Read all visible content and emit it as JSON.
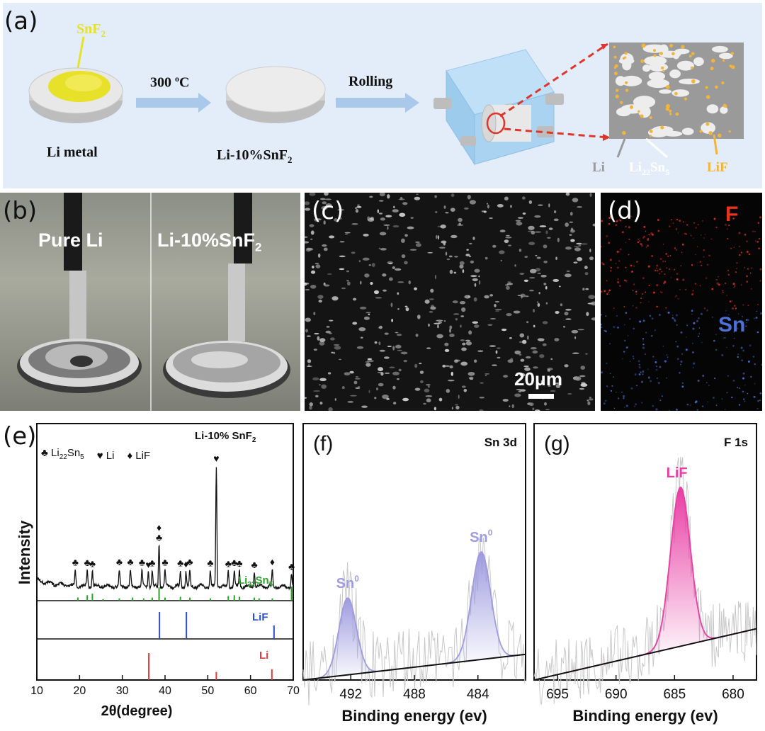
{
  "panel_a": {
    "letter": "(a)",
    "snf2_label": "SnF",
    "snf2_sub": "2",
    "step1_label": "300",
    "step1_sup": "o",
    "step1_unit": "C",
    "step2_label": "Rolling",
    "disc1_caption": "Li metal",
    "disc2_caption": "Li-10%SnF",
    "disc2_sub": "2",
    "legend_li": "Li",
    "legend_li22": "Li",
    "legend_li22_sub": "22",
    "legend_li22_rest": "Sn",
    "legend_li22_sub2": "5",
    "legend_lif": "LiF",
    "colors": {
      "background": "#e3edf9",
      "snf2": "#e8e12a",
      "arrow": "#aac8ea",
      "dashed": "#e0352b",
      "matrix": "#9a9a9a",
      "lif": "#f2b53a"
    }
  },
  "panel_b": {
    "letter": "(b)",
    "label_left": "Pure Li",
    "label_right": "Li-10%SnF",
    "label_right_sub": "2"
  },
  "panel_c": {
    "letter": "(c)",
    "scale_bar": "20μm"
  },
  "panel_d": {
    "letter": "(d)",
    "label_f": "F",
    "label_sn": "Sn",
    "colors": {
      "f": "#e8331e",
      "sn": "#4a72d8"
    }
  },
  "chart_data": [
    {
      "panel": "(e)",
      "type": "line",
      "title": "Li-10% SnF",
      "title_sub": "2",
      "xlabel": "2θ(degree)",
      "ylabel": "Intensity",
      "xlim": [
        10,
        70
      ],
      "xticks": [
        10,
        20,
        30,
        40,
        50,
        60,
        70
      ],
      "legend": [
        {
          "symbol": "♣",
          "name": "Li",
          "sub": "22",
          "rest": "Sn",
          "sub2": "5"
        },
        {
          "symbol": "♥",
          "name": "Li"
        },
        {
          "symbol": "♦",
          "name": "LiF"
        }
      ],
      "peaks_marked": [
        {
          "x": 19.0,
          "label": "♣"
        },
        {
          "x": 21.8,
          "label": "♣"
        },
        {
          "x": 23.0,
          "label": "♣"
        },
        {
          "x": 29.3,
          "label": "♣"
        },
        {
          "x": 31.9,
          "label": "♣"
        },
        {
          "x": 34.6,
          "label": "♣"
        },
        {
          "x": 36.1,
          "label": "♥"
        },
        {
          "x": 37.0,
          "label": "♣"
        },
        {
          "x": 38.6,
          "label": "♣ ♦"
        },
        {
          "x": 40.0,
          "label": "♣"
        },
        {
          "x": 43.6,
          "label": "♣"
        },
        {
          "x": 44.9,
          "label": "♦"
        },
        {
          "x": 45.8,
          "label": "♣"
        },
        {
          "x": 50.6,
          "label": "♣"
        },
        {
          "x": 52.0,
          "label": "♥"
        },
        {
          "x": 54.8,
          "label": "♣"
        },
        {
          "x": 56.2,
          "label": "♣"
        },
        {
          "x": 57.4,
          "label": "♣"
        },
        {
          "x": 60.9,
          "label": "♣"
        },
        {
          "x": 65.1,
          "label": "♦"
        },
        {
          "x": 69.6,
          "label": "♣"
        }
      ],
      "reference_patterns": [
        {
          "name": "Li",
          "sub": "22",
          "rest": "Sn",
          "sub2": "5",
          "color": "#2ea02c",
          "lines": [
            [
              19.6,
              0.2
            ],
            [
              21.8,
              0.35
            ],
            [
              23.0,
              0.45
            ],
            [
              25.5,
              0.1
            ],
            [
              29.3,
              0.15
            ],
            [
              32.4,
              0.2
            ],
            [
              35.0,
              0.15
            ],
            [
              37.0,
              0.2
            ],
            [
              38.6,
              0.85
            ],
            [
              40.0,
              0.2
            ],
            [
              43.6,
              0.25
            ],
            [
              45.8,
              0.2
            ],
            [
              50.6,
              0.15
            ],
            [
              54.8,
              0.3
            ],
            [
              56.2,
              0.35
            ],
            [
              57.4,
              0.25
            ],
            [
              60.9,
              0.2
            ],
            [
              62.0,
              0.15
            ],
            [
              65.1,
              0.15
            ],
            [
              69.6,
              0.9
            ]
          ]
        },
        {
          "name": "LiF",
          "color": "#2c4fc4",
          "lines": [
            [
              38.7,
              1.0
            ],
            [
              45.0,
              1.0
            ],
            [
              65.5,
              0.5
            ]
          ]
        },
        {
          "name": "Li",
          "color": "#e03a3a",
          "lines": [
            [
              36.2,
              1.0
            ],
            [
              52.0,
              0.3
            ],
            [
              65.0,
              0.4
            ]
          ]
        }
      ]
    },
    {
      "panel": "(f)",
      "type": "line",
      "title": "Sn 3d",
      "xlabel": "Binding energy (ev)",
      "xlim": [
        495,
        481
      ],
      "xticks": [
        492,
        488,
        484
      ],
      "peak_labels": [
        {
          "x": 492.2,
          "text": "Sn",
          "sup": "0"
        },
        {
          "x": 483.8,
          "text": "Sn",
          "sup": "0"
        }
      ],
      "components": [
        {
          "center": 492.2,
          "sigma": 0.55,
          "height": 0.3
        },
        {
          "center": 483.8,
          "sigma": 0.6,
          "height": 0.42
        }
      ],
      "colors": {
        "peak": "#9f9be0",
        "baseline": "#111111",
        "raw": "#c8c8c8"
      }
    },
    {
      "panel": "(g)",
      "type": "line",
      "title": "F 1s",
      "xlabel": "Binding energy (ev)",
      "xlim": [
        697,
        678
      ],
      "xticks": [
        695,
        690,
        685,
        680
      ],
      "peak_labels": [
        {
          "x": 684.8,
          "text": "LiF"
        }
      ],
      "components": [
        {
          "center": 684.5,
          "sigma": 0.85,
          "height": 0.62
        }
      ],
      "colors": {
        "peak": "#e83ea4",
        "baseline": "#111111",
        "raw": "#c8c8c8"
      }
    }
  ]
}
